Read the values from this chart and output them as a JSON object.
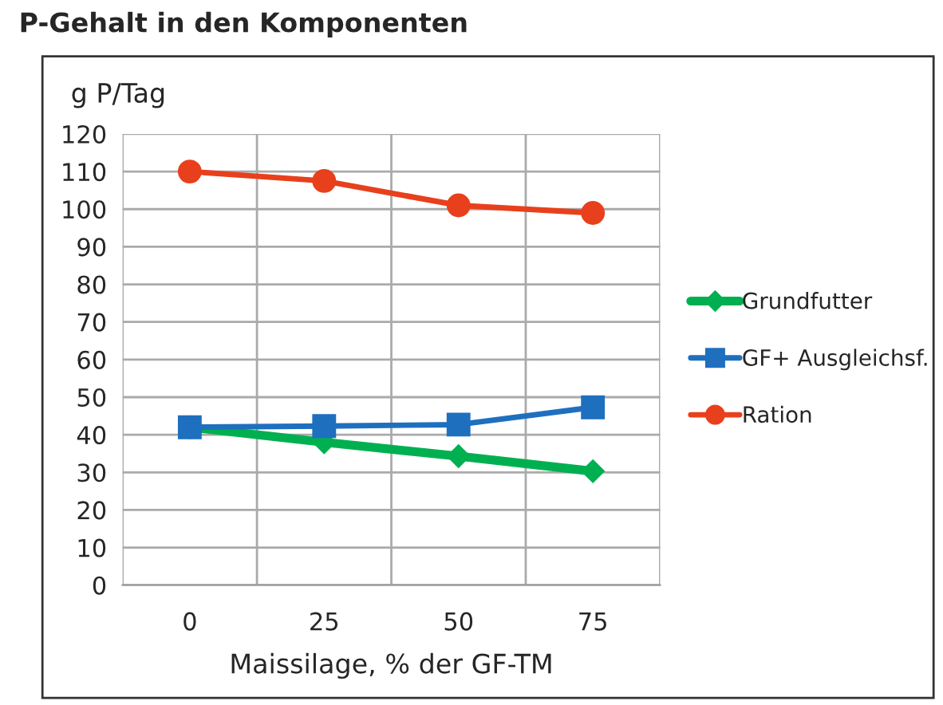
{
  "chart_data": {
    "type": "line",
    "title": "P-Gehalt in den Komponenten",
    "ylabel": "g P/Tag",
    "xlabel": "Maissilage, % der GF-TM",
    "categories": [
      "0",
      "25",
      "50",
      "75"
    ],
    "series": [
      {
        "name": "Grundfutter",
        "color": "#00b050",
        "marker": "diamond",
        "values": [
          42,
          38,
          34.3,
          30.3
        ]
      },
      {
        "name": "GF+ Ausgleichsf.",
        "color": "#1f6fbf",
        "marker": "square",
        "values": [
          42,
          42.3,
          42.7,
          47.3
        ]
      },
      {
        "name": "Ration",
        "color": "#e8401c",
        "marker": "circle",
        "values": [
          110,
          107.5,
          101,
          99
        ]
      }
    ],
    "ylim": [
      0,
      120
    ],
    "yticks": [
      0,
      10,
      20,
      30,
      40,
      50,
      60,
      70,
      80,
      90,
      100,
      110,
      120
    ],
    "grid": true,
    "legend": "right"
  }
}
